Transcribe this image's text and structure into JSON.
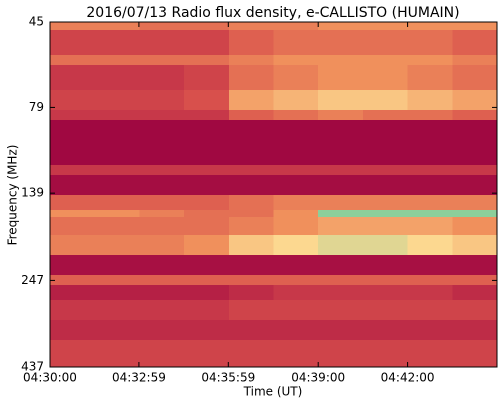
{
  "chart_data": {
    "type": "heatmap",
    "title": "2016/07/13  Radio flux density, e-CALLISTO (HUMAIN)",
    "xlabel": "Time (UT)",
    "ylabel": "Frequency (MHz)",
    "x": [
      16200,
      16290,
      16380,
      16470,
      16560,
      16650,
      16740,
      16830,
      16920,
      17010,
      17100
    ],
    "y": [
      45,
      47.4,
      55.9,
      59.7,
      70.4,
      80.3,
      85.7,
      115.5,
      123.3,
      140.7,
      155.3,
      162.6,
      183.0,
      208.7,
      238.1,
      254.4,
      280.8,
      320.4,
      365.5,
      437
    ],
    "z": [
      [
        0.55,
        0.55,
        0.5,
        0.5,
        0.55,
        0.55,
        0.6,
        0.6,
        0.6,
        0.6
      ],
      [
        0.35,
        0.35,
        0.35,
        0.35,
        0.45,
        0.5,
        0.5,
        0.5,
        0.5,
        0.45
      ],
      [
        0.5,
        0.5,
        0.5,
        0.5,
        0.55,
        0.6,
        0.6,
        0.6,
        0.6,
        0.55
      ],
      [
        0.3,
        0.3,
        0.3,
        0.35,
        0.5,
        0.55,
        0.6,
        0.6,
        0.55,
        0.5
      ],
      [
        0.35,
        0.35,
        0.35,
        0.4,
        0.65,
        0.7,
        0.75,
        0.75,
        0.7,
        0.65
      ],
      [
        0.3,
        0.3,
        0.3,
        0.3,
        0.45,
        0.5,
        0.55,
        0.5,
        0.5,
        0.45
      ],
      [
        0.05,
        0.05,
        0.05,
        0.05,
        0.05,
        0.05,
        0.05,
        0.05,
        0.05,
        0.05
      ],
      [
        0.3,
        0.3,
        0.3,
        0.3,
        0.3,
        0.3,
        0.3,
        0.3,
        0.3,
        0.3
      ],
      [
        0.08,
        0.08,
        0.08,
        0.08,
        0.08,
        0.08,
        0.08,
        0.08,
        0.08,
        0.08
      ],
      [
        0.45,
        0.45,
        0.45,
        0.45,
        0.5,
        0.55,
        0.55,
        0.55,
        0.55,
        0.55
      ],
      [
        0.6,
        0.6,
        0.55,
        0.5,
        0.5,
        0.6,
        1.0,
        1.0,
        1.0,
        1.0
      ],
      [
        0.5,
        0.5,
        0.5,
        0.5,
        0.55,
        0.6,
        0.65,
        0.65,
        0.65,
        0.6
      ],
      [
        0.55,
        0.55,
        0.55,
        0.6,
        0.75,
        0.8,
        0.85,
        0.85,
        0.8,
        0.75
      ],
      [
        0.1,
        0.1,
        0.1,
        0.1,
        0.1,
        0.1,
        0.1,
        0.1,
        0.1,
        0.1
      ],
      [
        0.45,
        0.45,
        0.45,
        0.45,
        0.45,
        0.45,
        0.45,
        0.45,
        0.45,
        0.45
      ],
      [
        0.2,
        0.2,
        0.2,
        0.2,
        0.25,
        0.3,
        0.3,
        0.3,
        0.3,
        0.25
      ],
      [
        0.3,
        0.3,
        0.3,
        0.3,
        0.35,
        0.35,
        0.35,
        0.35,
        0.35,
        0.35
      ],
      [
        0.25,
        0.25,
        0.25,
        0.25,
        0.25,
        0.25,
        0.25,
        0.25,
        0.25,
        0.25
      ],
      [
        0.35,
        0.35,
        0.35,
        0.35,
        0.35,
        0.35,
        0.35,
        0.35,
        0.35,
        0.35
      ]
    ],
    "zlim": [
      0,
      1
    ],
    "colormap": [
      "#990040",
      "#b52045",
      "#d8504c",
      "#f0905c",
      "#fcd890",
      "#8ccf9a"
    ],
    "xlim": [
      16200,
      17100
    ],
    "xticks": [
      {
        "value": 16200,
        "label": "04:30:00"
      },
      {
        "value": 16379,
        "label": "04:32:59"
      },
      {
        "value": 16559,
        "label": "04:35:59"
      },
      {
        "value": 16740,
        "label": "04:39:00"
      },
      {
        "value": 16920,
        "label": "04:42:00"
      }
    ],
    "ylim": [
      437,
      45
    ],
    "yscale": "log",
    "yticks": [
      45,
      79,
      139,
      247,
      437
    ]
  }
}
